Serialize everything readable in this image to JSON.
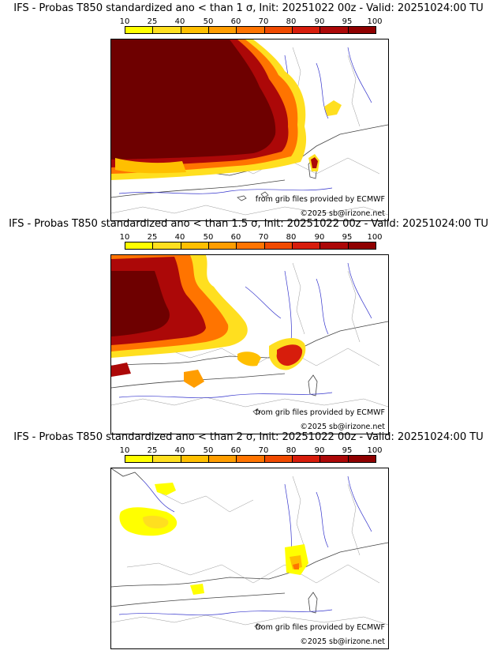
{
  "colorbar": {
    "ticks": [
      "10",
      "25",
      "40",
      "50",
      "60",
      "70",
      "80",
      "90",
      "95",
      "100"
    ],
    "colors": [
      "#ffff00",
      "#ffdf1f",
      "#ffbf00",
      "#ff9d00",
      "#ff7400",
      "#f04a00",
      "#d71d0c",
      "#ac0808",
      "#8f0000"
    ]
  },
  "panels": [
    {
      "title": "IFS - Probas T850  standardized ano < than 1 σ, Init: 20251022 00z - Valid: 20251024:00 TU",
      "credit_source": "from grib files provided by ECMWF",
      "credit_copyright": "©2025 sb@irizone.net"
    },
    {
      "title": "IFS - Probas T850  standardized ano < than 1.5 σ, Init: 20251022 00z - Valid: 20251024:00 TU",
      "credit_source": "from grib files provided by ECMWF",
      "credit_copyright": "©2025 sb@irizone.net"
    },
    {
      "title": "IFS - Probas T850  standardized ano < than 2 σ, Init: 20251022 00z - Valid: 20251024:00 TU",
      "credit_source": "from grib files provided by ECMWF",
      "credit_copyright": "©2025 sb@irizone.net"
    }
  ]
}
